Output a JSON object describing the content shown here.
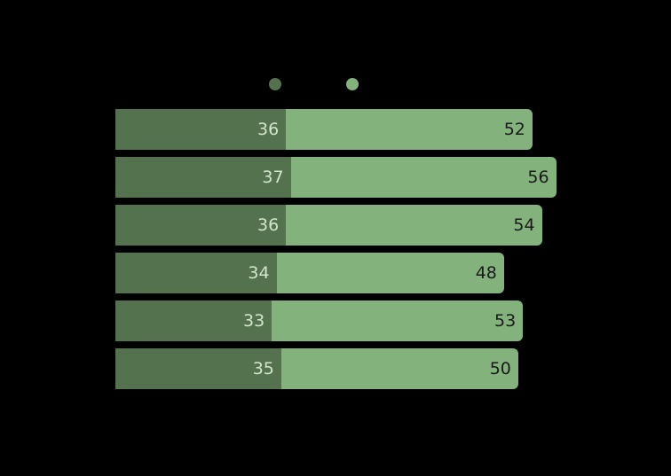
{
  "canvas": {
    "background": "#000000"
  },
  "legend": {
    "markers": [
      {
        "name": "series-1-marker",
        "color": "#55724f",
        "label": ""
      },
      {
        "name": "series-2-marker",
        "color": "#83b27d",
        "label": ""
      }
    ]
  },
  "chart_data": {
    "type": "bar",
    "orientation": "horizontal",
    "stacked": true,
    "categories": [
      "",
      "",
      "",
      "",
      "",
      ""
    ],
    "series": [
      {
        "name": "",
        "color": "#55724f",
        "label_color": "#d2e4cc",
        "values": [
          36,
          37,
          36,
          34,
          33,
          35
        ]
      },
      {
        "name": "",
        "color": "#83b27d",
        "label_color": "#1a1a1a",
        "values": [
          52,
          56,
          54,
          48,
          53,
          50
        ]
      }
    ],
    "xlim": [
      0,
      100
    ],
    "grid": false,
    "legend_position": "top-center"
  }
}
